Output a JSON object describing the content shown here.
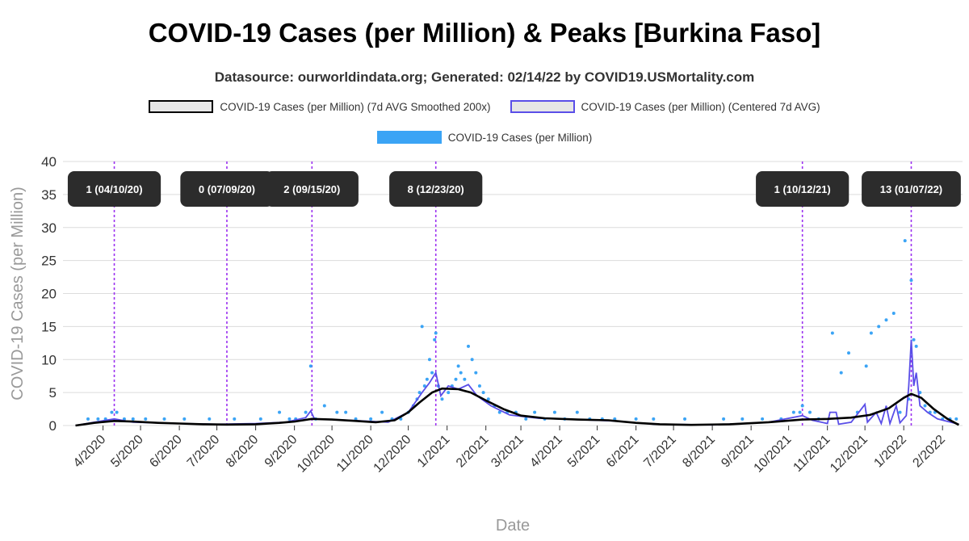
{
  "chart_data": {
    "type": "line",
    "title": "COVID-19 Cases (per Million) & Peaks [Burkina Faso]",
    "subtitle": "Datasource: ourworldindata.org; Generated: 02/14/22 by COVID19.USMortality.com",
    "xlabel": "Date",
    "ylabel": "COVID-19 Cases (per Million)",
    "ylim": [
      0,
      40
    ],
    "yticks": [
      0,
      5,
      10,
      15,
      20,
      25,
      30,
      35,
      40
    ],
    "grid": true,
    "legend_position": "top",
    "x_tick_labels": [
      {
        "date": "2020-04-01",
        "label": "4/2020"
      },
      {
        "date": "2020-05-01",
        "label": "5/2020"
      },
      {
        "date": "2020-06-01",
        "label": "6/2020"
      },
      {
        "date": "2020-07-01",
        "label": "7/2020"
      },
      {
        "date": "2020-08-01",
        "label": "8/2020"
      },
      {
        "date": "2020-09-01",
        "label": "9/2020"
      },
      {
        "date": "2020-10-01",
        "label": "10/2020"
      },
      {
        "date": "2020-11-01",
        "label": "11/2020"
      },
      {
        "date": "2020-12-01",
        "label": "12/2020"
      },
      {
        "date": "2021-01-01",
        "label": "1/2021"
      },
      {
        "date": "2021-02-01",
        "label": "2/2021"
      },
      {
        "date": "2021-03-01",
        "label": "3/2021"
      },
      {
        "date": "2021-04-01",
        "label": "4/2021"
      },
      {
        "date": "2021-05-01",
        "label": "5/2021"
      },
      {
        "date": "2021-06-01",
        "label": "6/2021"
      },
      {
        "date": "2021-07-01",
        "label": "7/2021"
      },
      {
        "date": "2021-08-01",
        "label": "8/2021"
      },
      {
        "date": "2021-09-01",
        "label": "9/2021"
      },
      {
        "date": "2021-10-01",
        "label": "10/2021"
      },
      {
        "date": "2021-11-01",
        "label": "11/2021"
      },
      {
        "date": "2021-12-01",
        "label": "12/2021"
      },
      {
        "date": "2022-01-01",
        "label": "1/2022"
      },
      {
        "date": "2022-02-01",
        "label": "2/2022"
      }
    ],
    "series": [
      {
        "name": "COVID-19 Cases (per Million) (7d AVG Smoothed 200x)",
        "style": "line",
        "color": "#000000",
        "points": [
          [
            "2020-03-10",
            0
          ],
          [
            "2020-03-25",
            0.4
          ],
          [
            "2020-04-10",
            0.7
          ],
          [
            "2020-04-25",
            0.6
          ],
          [
            "2020-05-15",
            0.4
          ],
          [
            "2020-06-01",
            0.3
          ],
          [
            "2020-06-20",
            0.2
          ],
          [
            "2020-07-09",
            0.15
          ],
          [
            "2020-08-01",
            0.2
          ],
          [
            "2020-08-20",
            0.4
          ],
          [
            "2020-09-01",
            0.6
          ],
          [
            "2020-09-15",
            1.0
          ],
          [
            "2020-10-01",
            0.9
          ],
          [
            "2020-10-20",
            0.7
          ],
          [
            "2020-11-05",
            0.5
          ],
          [
            "2020-11-20",
            0.8
          ],
          [
            "2020-12-01",
            2.0
          ],
          [
            "2020-12-10",
            3.5
          ],
          [
            "2020-12-20",
            5.0
          ],
          [
            "2020-12-28",
            5.6
          ],
          [
            "2021-01-10",
            5.5
          ],
          [
            "2021-01-20",
            5.0
          ],
          [
            "2021-02-01",
            3.8
          ],
          [
            "2021-02-15",
            2.5
          ],
          [
            "2021-03-01",
            1.5
          ],
          [
            "2021-03-20",
            1.1
          ],
          [
            "2021-04-15",
            0.9
          ],
          [
            "2021-05-10",
            0.8
          ],
          [
            "2021-06-01",
            0.4
          ],
          [
            "2021-06-20",
            0.2
          ],
          [
            "2021-07-15",
            0.1
          ],
          [
            "2021-08-15",
            0.2
          ],
          [
            "2021-09-15",
            0.5
          ],
          [
            "2021-10-12",
            0.9
          ],
          [
            "2021-11-01",
            1.0
          ],
          [
            "2021-11-20",
            1.2
          ],
          [
            "2021-12-05",
            1.6
          ],
          [
            "2021-12-20",
            2.6
          ],
          [
            "2022-01-01",
            4.2
          ],
          [
            "2022-01-07",
            4.8
          ],
          [
            "2022-01-15",
            4.2
          ],
          [
            "2022-01-25",
            2.5
          ],
          [
            "2022-02-05",
            1.0
          ],
          [
            "2022-02-14",
            0.1
          ]
        ]
      },
      {
        "name": "COVID-19 Cases (per Million) (Centered 7d AVG)",
        "style": "line",
        "color": "#5a4ee8",
        "points": [
          [
            "2020-03-10",
            0
          ],
          [
            "2020-03-25",
            0.5
          ],
          [
            "2020-04-10",
            1.0
          ],
          [
            "2020-04-25",
            0.5
          ],
          [
            "2020-05-15",
            0.4
          ],
          [
            "2020-06-01",
            0.3
          ],
          [
            "2020-07-01",
            0.2
          ],
          [
            "2020-08-01",
            0.3
          ],
          [
            "2020-08-25",
            0.5
          ],
          [
            "2020-09-10",
            1.2
          ],
          [
            "2020-09-14",
            2.2
          ],
          [
            "2020-09-17",
            1.0
          ],
          [
            "2020-10-15",
            0.8
          ],
          [
            "2020-11-15",
            0.5
          ],
          [
            "2020-12-01",
            2.0
          ],
          [
            "2020-12-12",
            5.0
          ],
          [
            "2020-12-18",
            6.5
          ],
          [
            "2020-12-23",
            8.0
          ],
          [
            "2020-12-27",
            4.5
          ],
          [
            "2021-01-02",
            6.0
          ],
          [
            "2021-01-10",
            5.5
          ],
          [
            "2021-01-18",
            6.2
          ],
          [
            "2021-01-25",
            4.5
          ],
          [
            "2021-02-05",
            3.0
          ],
          [
            "2021-02-20",
            1.6
          ],
          [
            "2021-03-15",
            1.1
          ],
          [
            "2021-04-15",
            0.9
          ],
          [
            "2021-05-15",
            0.7
          ],
          [
            "2021-06-15",
            0.2
          ],
          [
            "2021-08-01",
            0.1
          ],
          [
            "2021-09-15",
            0.5
          ],
          [
            "2021-10-12",
            1.5
          ],
          [
            "2021-10-20",
            0.8
          ],
          [
            "2021-11-01",
            0.3
          ],
          [
            "2021-11-03",
            2.0
          ],
          [
            "2021-11-08",
            2.0
          ],
          [
            "2021-11-10",
            0.2
          ],
          [
            "2021-11-20",
            0.5
          ],
          [
            "2021-12-01",
            3.2
          ],
          [
            "2021-12-03",
            0.5
          ],
          [
            "2021-12-10",
            2.0
          ],
          [
            "2021-12-14",
            0.3
          ],
          [
            "2021-12-18",
            3.0
          ],
          [
            "2021-12-21",
            0.3
          ],
          [
            "2021-12-26",
            3.0
          ],
          [
            "2021-12-29",
            0.4
          ],
          [
            "2022-01-03",
            1.5
          ],
          [
            "2022-01-05",
            6.0
          ],
          [
            "2022-01-07",
            13.0
          ],
          [
            "2022-01-09",
            6.0
          ],
          [
            "2022-01-11",
            8.0
          ],
          [
            "2022-01-14",
            3.0
          ],
          [
            "2022-01-20",
            2.0
          ],
          [
            "2022-01-28",
            1.0
          ],
          [
            "2022-02-14",
            0.2
          ]
        ]
      },
      {
        "name": "COVID-19 Cases (per Million)",
        "style": "scatter",
        "color": "#3ba4f5",
        "points": [
          [
            "2020-03-20",
            1
          ],
          [
            "2020-03-28",
            1
          ],
          [
            "2020-04-03",
            1
          ],
          [
            "2020-04-08",
            2
          ],
          [
            "2020-04-12",
            2
          ],
          [
            "2020-04-18",
            1
          ],
          [
            "2020-04-25",
            1
          ],
          [
            "2020-05-05",
            1
          ],
          [
            "2020-05-20",
            1
          ],
          [
            "2020-06-05",
            1
          ],
          [
            "2020-06-25",
            1
          ],
          [
            "2020-07-15",
            1
          ],
          [
            "2020-08-05",
            1
          ],
          [
            "2020-08-20",
            2
          ],
          [
            "2020-08-28",
            1
          ],
          [
            "2020-09-02",
            1
          ],
          [
            "2020-09-10",
            2
          ],
          [
            "2020-09-14",
            9
          ],
          [
            "2020-09-18",
            1
          ],
          [
            "2020-09-25",
            3
          ],
          [
            "2020-10-05",
            2
          ],
          [
            "2020-10-12",
            2
          ],
          [
            "2020-10-20",
            1
          ],
          [
            "2020-11-01",
            1
          ],
          [
            "2020-11-10",
            2
          ],
          [
            "2020-11-18",
            1
          ],
          [
            "2020-11-25",
            1
          ],
          [
            "2020-12-01",
            2
          ],
          [
            "2020-12-05",
            3
          ],
          [
            "2020-12-08",
            4
          ],
          [
            "2020-12-10",
            5
          ],
          [
            "2020-12-12",
            15
          ],
          [
            "2020-12-14",
            6
          ],
          [
            "2020-12-16",
            7
          ],
          [
            "2020-12-18",
            10
          ],
          [
            "2020-12-20",
            8
          ],
          [
            "2020-12-22",
            13
          ],
          [
            "2020-12-23",
            14
          ],
          [
            "2020-12-25",
            6
          ],
          [
            "2020-12-28",
            4
          ],
          [
            "2021-01-02",
            5
          ],
          [
            "2021-01-05",
            6
          ],
          [
            "2021-01-08",
            7
          ],
          [
            "2021-01-10",
            9
          ],
          [
            "2021-01-12",
            8
          ],
          [
            "2021-01-15",
            7
          ],
          [
            "2021-01-18",
            12
          ],
          [
            "2021-01-21",
            10
          ],
          [
            "2021-01-24",
            8
          ],
          [
            "2021-01-27",
            6
          ],
          [
            "2021-01-30",
            5
          ],
          [
            "2021-02-03",
            4
          ],
          [
            "2021-02-08",
            3
          ],
          [
            "2021-02-12",
            2
          ],
          [
            "2021-02-18",
            2
          ],
          [
            "2021-02-25",
            2
          ],
          [
            "2021-03-05",
            1
          ],
          [
            "2021-03-12",
            2
          ],
          [
            "2021-03-20",
            1
          ],
          [
            "2021-03-28",
            2
          ],
          [
            "2021-04-05",
            1
          ],
          [
            "2021-04-15",
            2
          ],
          [
            "2021-04-25",
            1
          ],
          [
            "2021-05-05",
            1
          ],
          [
            "2021-05-15",
            1
          ],
          [
            "2021-06-01",
            1
          ],
          [
            "2021-06-15",
            1
          ],
          [
            "2021-07-10",
            1
          ],
          [
            "2021-08-10",
            1
          ],
          [
            "2021-08-25",
            1
          ],
          [
            "2021-09-10",
            1
          ],
          [
            "2021-09-25",
            1
          ],
          [
            "2021-10-05",
            2
          ],
          [
            "2021-10-10",
            2
          ],
          [
            "2021-10-12",
            3
          ],
          [
            "2021-10-18",
            2
          ],
          [
            "2021-10-25",
            1
          ],
          [
            "2021-11-05",
            14
          ],
          [
            "2021-11-12",
            8
          ],
          [
            "2021-11-18",
            11
          ],
          [
            "2021-11-25",
            2
          ],
          [
            "2021-12-02",
            9
          ],
          [
            "2021-12-06",
            14
          ],
          [
            "2021-12-12",
            15
          ],
          [
            "2021-12-18",
            16
          ],
          [
            "2021-12-24",
            17
          ],
          [
            "2021-12-29",
            2
          ],
          [
            "2022-01-02",
            28
          ],
          [
            "2022-01-05",
            4
          ],
          [
            "2022-01-07",
            22
          ],
          [
            "2022-01-09",
            13
          ],
          [
            "2022-01-11",
            12
          ],
          [
            "2022-01-14",
            5
          ],
          [
            "2022-01-18",
            3
          ],
          [
            "2022-01-22",
            2
          ],
          [
            "2022-01-26",
            2
          ],
          [
            "2022-02-01",
            1
          ],
          [
            "2022-02-07",
            1
          ],
          [
            "2022-02-12",
            1
          ]
        ]
      }
    ],
    "peaks": [
      {
        "date": "2020-04-10",
        "label": "1 (04/10/20)"
      },
      {
        "date": "2020-07-09",
        "label": "0 (07/09/20)"
      },
      {
        "date": "2020-09-15",
        "label": "2 (09/15/20)"
      },
      {
        "date": "2020-12-23",
        "label": "8 (12/23/20)"
      },
      {
        "date": "2021-10-12",
        "label": "1 (10/12/21)"
      },
      {
        "date": "2022-01-07",
        "label": "13 (01/07/22)"
      }
    ],
    "colors": {
      "smoothed": "#000000",
      "centered": "#5a4ee8",
      "raw": "#3ba4f5",
      "peak_line": "#9b30f0",
      "peak_label_bg": "#2c2c2c",
      "grid": "#dcdcdc"
    }
  }
}
